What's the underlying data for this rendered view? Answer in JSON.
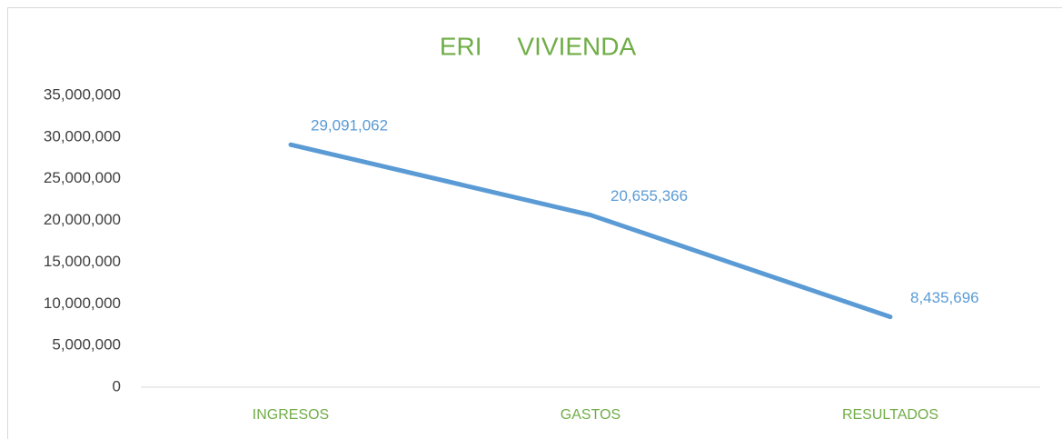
{
  "chart_data": {
    "type": "line",
    "title": "ERI     VIVIENDA",
    "categories": [
      "INGRESOS",
      "GASTOS",
      "RESULTADOS"
    ],
    "series": [
      {
        "name": "VIVIENDA",
        "color": "#5b9bd5",
        "values": [
          29091062,
          20655366,
          8435696
        ],
        "value_labels": [
          "29,091,062",
          "20,655,366",
          "8,435,696"
        ]
      }
    ],
    "ylim": [
      0,
      35000000
    ],
    "yticks": [
      0,
      {
        "value": 5000000,
        "label": "5,000,000"
      },
      {
        "value": 10000000,
        "label": "10,000,000"
      },
      {
        "value": 15000000,
        "label": "15,000,000"
      },
      {
        "value": 20000000,
        "label": "20,000,000"
      },
      {
        "value": 25000000,
        "label": "25,000,000"
      },
      {
        "value": 30000000,
        "label": "30,000,000"
      },
      {
        "value": 35000000,
        "label": "35,000,000"
      }
    ],
    "grid": false,
    "legend": false
  }
}
